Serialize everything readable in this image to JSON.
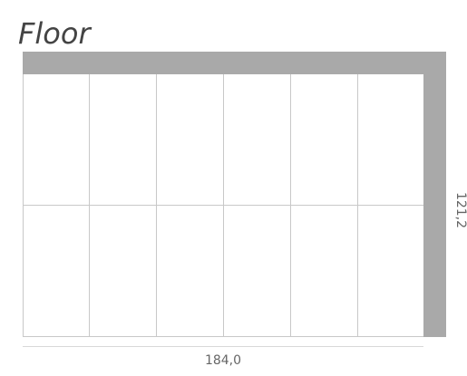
{
  "title": "Floor",
  "dimensions": {
    "width": "184,0",
    "height": "121,2"
  }
}
